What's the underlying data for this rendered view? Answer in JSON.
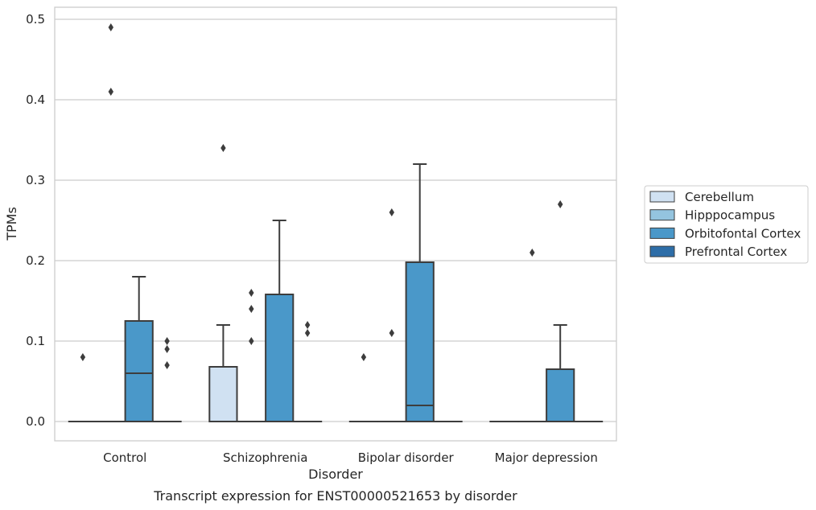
{
  "chart_data": {
    "type": "box",
    "title": "Transcript expression for ENST00000521653 by disorder",
    "xlabel": "Disorder",
    "ylabel": "TPMs",
    "ylim": [
      -0.024,
      0.515
    ],
    "yticks": [
      "0.0",
      "0.1",
      "0.2",
      "0.3",
      "0.4",
      "0.5"
    ],
    "grid": true,
    "legend_position": "right",
    "categories": [
      "Control",
      "Schizophrenia",
      "Bipolar disorder",
      "Major depression"
    ],
    "series": [
      {
        "name": "Cerebellum",
        "color": "#d0e1f2",
        "boxes": [
          {
            "q1": 0,
            "median": 0,
            "q3": 0,
            "whislo": 0,
            "whishi": 0,
            "fliers": [
              0.08
            ]
          },
          {
            "q1": 0,
            "median": 0,
            "q3": 0.068,
            "whislo": 0,
            "whishi": 0.12,
            "fliers": [
              0.34
            ]
          },
          {
            "q1": 0,
            "median": 0,
            "q3": 0,
            "whislo": 0,
            "whishi": 0,
            "fliers": [
              0.08
            ]
          },
          {
            "q1": 0,
            "median": 0,
            "q3": 0,
            "whislo": 0,
            "whishi": 0,
            "fliers": []
          }
        ]
      },
      {
        "name": "Hipppocampus",
        "color": "#94c4df",
        "boxes": [
          {
            "q1": 0,
            "median": 0,
            "q3": 0,
            "whislo": 0,
            "whishi": 0,
            "fliers": [
              0.49,
              0.41
            ]
          },
          {
            "q1": 0,
            "median": 0,
            "q3": 0,
            "whislo": 0,
            "whishi": 0,
            "fliers": [
              0.16,
              0.14,
              0.1
            ]
          },
          {
            "q1": 0,
            "median": 0,
            "q3": 0,
            "whislo": 0,
            "whishi": 0,
            "fliers": [
              0.26,
              0.11
            ]
          },
          {
            "q1": 0,
            "median": 0,
            "q3": 0,
            "whislo": 0,
            "whishi": 0,
            "fliers": [
              0.21
            ]
          }
        ]
      },
      {
        "name": "Orbitofontal Cortex",
        "color": "#4a98c9",
        "boxes": [
          {
            "q1": 0,
            "median": 0.06,
            "q3": 0.125,
            "whislo": 0,
            "whishi": 0.18,
            "fliers": []
          },
          {
            "q1": 0,
            "median": 0,
            "q3": 0.158,
            "whislo": 0,
            "whishi": 0.25,
            "fliers": []
          },
          {
            "q1": 0,
            "median": 0.02,
            "q3": 0.198,
            "whislo": 0,
            "whishi": 0.32,
            "fliers": []
          },
          {
            "q1": 0,
            "median": 0,
            "q3": 0.065,
            "whislo": 0,
            "whishi": 0.12,
            "fliers": [
              0.27
            ]
          }
        ]
      },
      {
        "name": "Prefrontal Cortex",
        "color": "#2e6ea8",
        "boxes": [
          {
            "q1": 0,
            "median": 0,
            "q3": 0,
            "whislo": 0,
            "whishi": 0,
            "fliers": [
              0.1,
              0.09,
              0.07
            ]
          },
          {
            "q1": 0,
            "median": 0,
            "q3": 0,
            "whislo": 0,
            "whishi": 0,
            "fliers": [
              0.12,
              0.11
            ]
          },
          {
            "q1": 0,
            "median": 0,
            "q3": 0,
            "whislo": 0,
            "whishi": 0,
            "fliers": []
          },
          {
            "q1": 0,
            "median": 0,
            "q3": 0,
            "whislo": 0,
            "whishi": 0,
            "fliers": []
          }
        ]
      }
    ]
  }
}
